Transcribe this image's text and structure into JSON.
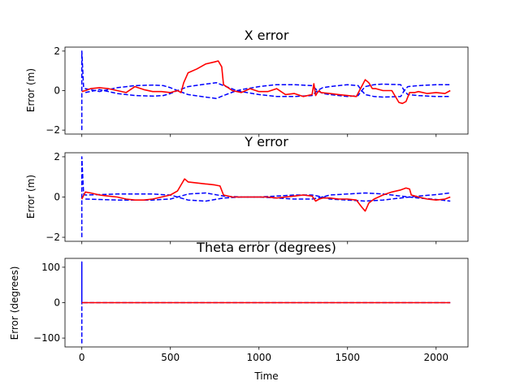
{
  "figure": {
    "xlabel": "Time",
    "xticks": [
      "0",
      "500",
      "1000",
      "1500",
      "2000"
    ]
  },
  "chart_data": [
    {
      "type": "line",
      "title": "X error",
      "xlabel": "",
      "ylabel": "Error (m)",
      "xlim": [
        -95,
        2180
      ],
      "ylim": [
        -2.2,
        2.2
      ],
      "yticks": [
        "2",
        "0",
        "−2"
      ],
      "ytick_values": [
        2,
        0,
        -2
      ],
      "colors": {
        "error": "#ff0000",
        "bound": "#0000ff"
      },
      "series": [
        {
          "role": "error",
          "style": "solid",
          "x": [
            0,
            20,
            50,
            100,
            150,
            200,
            250,
            300,
            350,
            400,
            450,
            500,
            540,
            560,
            575,
            600,
            650,
            700,
            750,
            770,
            790,
            800,
            850,
            900,
            950,
            1000,
            1050,
            1100,
            1150,
            1200,
            1250,
            1300,
            1310,
            1320,
            1330,
            1340,
            1350,
            1400,
            1450,
            1500,
            1550,
            1600,
            1620,
            1640,
            1660,
            1700,
            1750,
            1790,
            1810,
            1830,
            1850,
            1880,
            1900,
            1950,
            2000,
            2050,
            2080
          ],
          "y": [
            -0.05,
            0.0,
            0.1,
            0.15,
            0.1,
            0.0,
            -0.1,
            0.2,
            0.05,
            -0.05,
            -0.05,
            -0.1,
            0.0,
            -0.1,
            0.4,
            0.9,
            1.1,
            1.35,
            1.45,
            1.5,
            1.2,
            0.3,
            0.0,
            -0.1,
            0.1,
            -0.05,
            -0.05,
            0.1,
            -0.2,
            -0.15,
            -0.3,
            -0.2,
            0.35,
            -0.25,
            -0.1,
            0.0,
            -0.1,
            -0.15,
            -0.2,
            -0.25,
            -0.3,
            0.55,
            0.4,
            0.1,
            0.1,
            0.0,
            0.0,
            -0.6,
            -0.65,
            -0.55,
            -0.1,
            -0.1,
            -0.05,
            -0.15,
            -0.1,
            -0.15,
            0.0
          ]
        },
        {
          "role": "bound",
          "style": "dashed",
          "x": [
            0,
            0,
            10,
            20,
            100,
            200,
            300,
            400,
            460,
            500,
            540,
            600,
            700,
            760,
            800,
            860,
            900,
            1000,
            1100,
            1200,
            1300,
            1330,
            1360,
            1400,
            1500,
            1560,
            1580,
            1600,
            1650,
            1700,
            1800,
            1820,
            1840,
            1900,
            2000,
            2080
          ],
          "y": [
            -2.0,
            2.0,
            0.15,
            0.1,
            -0.05,
            0.15,
            0.25,
            0.28,
            0.25,
            0.15,
            0.0,
            -0.2,
            -0.33,
            -0.4,
            -0.25,
            -0.05,
            0.05,
            0.2,
            0.3,
            0.3,
            0.25,
            0.0,
            -0.15,
            -0.2,
            -0.3,
            -0.25,
            0.0,
            0.2,
            0.3,
            0.33,
            0.3,
            0.0,
            -0.2,
            -0.25,
            -0.3,
            -0.3
          ]
        },
        {
          "role": "bound",
          "style": "dashed",
          "x": [
            20,
            100,
            200,
            300,
            400,
            460,
            500,
            540,
            600,
            700,
            760,
            800,
            860,
            900,
            1000,
            1100,
            1200,
            1300,
            1330,
            1360,
            1400,
            1500,
            1560,
            1580,
            1600,
            1650,
            1700,
            1800,
            1820,
            1840,
            1900,
            2000,
            2080
          ],
          "y": [
            -0.1,
            0.05,
            -0.15,
            -0.25,
            -0.28,
            -0.25,
            -0.15,
            0.0,
            0.2,
            0.33,
            0.4,
            0.25,
            0.05,
            -0.05,
            -0.2,
            -0.3,
            -0.3,
            -0.25,
            0.0,
            0.15,
            0.2,
            0.3,
            0.25,
            0.0,
            -0.2,
            -0.3,
            -0.33,
            -0.3,
            0.0,
            0.2,
            0.25,
            0.3,
            0.3
          ]
        }
      ]
    },
    {
      "type": "line",
      "title": "Y error",
      "xlabel": "",
      "ylabel": "Error (m)",
      "xlim": [
        -95,
        2180
      ],
      "ylim": [
        -2.2,
        2.2
      ],
      "yticks": [
        "2",
        "0",
        "−2"
      ],
      "ytick_values": [
        2,
        0,
        -2
      ],
      "colors": {
        "error": "#ff0000",
        "bound": "#0000ff"
      },
      "series": [
        {
          "role": "error",
          "style": "solid",
          "x": [
            0,
            20,
            50,
            100,
            150,
            200,
            250,
            300,
            350,
            400,
            450,
            500,
            540,
            560,
            580,
            600,
            650,
            700,
            750,
            780,
            800,
            850,
            900,
            950,
            1000,
            1050,
            1100,
            1150,
            1200,
            1250,
            1300,
            1320,
            1340,
            1360,
            1400,
            1450,
            1500,
            1550,
            1580,
            1600,
            1610,
            1620,
            1650,
            1700,
            1750,
            1800,
            1830,
            1850,
            1860,
            1900,
            1950,
            2000,
            2050,
            2080
          ],
          "y": [
            -0.1,
            0.25,
            0.2,
            0.1,
            0.05,
            0.0,
            -0.1,
            -0.15,
            -0.15,
            -0.1,
            0.0,
            0.1,
            0.3,
            0.6,
            0.9,
            0.75,
            0.7,
            0.65,
            0.6,
            0.55,
            0.1,
            0.0,
            0.0,
            0.0,
            0.0,
            0.0,
            -0.05,
            0.0,
            0.05,
            0.1,
            0.05,
            -0.2,
            -0.1,
            -0.05,
            -0.05,
            -0.1,
            -0.1,
            -0.15,
            -0.5,
            -0.7,
            -0.5,
            -0.3,
            -0.1,
            0.1,
            0.25,
            0.35,
            0.45,
            0.4,
            0.1,
            0.0,
            -0.1,
            -0.15,
            -0.1,
            0.0
          ]
        },
        {
          "role": "bound",
          "style": "dashed",
          "x": [
            0,
            0,
            10,
            20,
            100,
            200,
            300,
            400,
            450,
            500,
            540,
            600,
            700,
            800,
            900,
            1000,
            1100,
            1200,
            1300,
            1360,
            1400,
            1500,
            1600,
            1700,
            1800,
            1850,
            1900,
            2000,
            2080
          ],
          "y": [
            -2.0,
            2.0,
            0.15,
            0.1,
            0.12,
            0.15,
            0.15,
            0.15,
            0.12,
            0.1,
            0.0,
            -0.15,
            -0.2,
            -0.05,
            0.0,
            0.0,
            0.05,
            0.1,
            0.1,
            0.0,
            -0.1,
            -0.15,
            -0.2,
            -0.15,
            -0.05,
            0.0,
            0.05,
            0.12,
            0.2
          ]
        },
        {
          "role": "bound",
          "style": "dashed",
          "x": [
            20,
            100,
            200,
            300,
            400,
            450,
            500,
            540,
            600,
            700,
            800,
            900,
            1000,
            1100,
            1200,
            1300,
            1360,
            1400,
            1500,
            1600,
            1700,
            1800,
            1850,
            1900,
            2000,
            2080
          ],
          "y": [
            -0.1,
            -0.12,
            -0.15,
            -0.15,
            -0.15,
            -0.12,
            -0.1,
            0.0,
            0.15,
            0.2,
            0.05,
            0.0,
            0.0,
            -0.05,
            -0.1,
            -0.1,
            0.0,
            0.1,
            0.15,
            0.2,
            0.15,
            0.05,
            0.0,
            -0.05,
            -0.12,
            -0.2
          ]
        }
      ]
    },
    {
      "type": "line",
      "title": "Theta error (degrees)",
      "xlabel": "Time",
      "ylabel": "Error (degrees)",
      "xlim": [
        -95,
        2180
      ],
      "ylim": [
        -125,
        125
      ],
      "yticks": [
        "100",
        "0",
        "−100"
      ],
      "ytick_values": [
        100,
        0,
        -100
      ],
      "colors": {
        "error": "#ff0000",
        "bound": "#0000ff"
      },
      "series": [
        {
          "role": "error",
          "style": "solid",
          "x": [
            0,
            2080
          ],
          "y": [
            0,
            0
          ]
        },
        {
          "role": "bound",
          "style": "dashed",
          "x": [
            0,
            0,
            0,
            2080
          ],
          "y": [
            -115,
            115,
            0,
            0
          ]
        }
      ]
    }
  ]
}
